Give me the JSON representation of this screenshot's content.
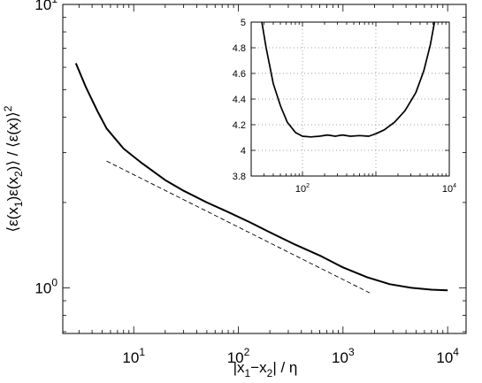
{
  "chart_data": [
    {
      "type": "line",
      "xscale": "log",
      "yscale": "log",
      "xlabel": "|x1−x2| / η",
      "ylabel": "⟨ε(x1)ε(x2)⟩ / ⟨ε(x)⟩²",
      "xlim": [
        2.1,
        15000
      ],
      "ylim": [
        0.69,
        10
      ],
      "xticks": [
        {
          "value": 10,
          "base": "10",
          "exp": "1"
        },
        {
          "value": 100,
          "base": "10",
          "exp": "2"
        },
        {
          "value": 1000,
          "base": "10",
          "exp": "3"
        },
        {
          "value": 10000,
          "base": "10",
          "exp": "4"
        }
      ],
      "yticks": [
        {
          "value": 1,
          "base": "10",
          "exp": "0"
        },
        {
          "value": 10,
          "base": "10",
          "exp": "1"
        }
      ],
      "series": [
        {
          "style": "solid",
          "x": [
            2.8,
            3.5,
            4.5,
            5.5,
            8,
            12,
            20,
            30,
            50,
            80,
            130,
            200,
            350,
            600,
            1000,
            1700,
            2800,
            4500,
            7000,
            10000
          ],
          "y": [
            6.2,
            5.1,
            4.2,
            3.65,
            3.1,
            2.75,
            2.4,
            2.2,
            2.0,
            1.85,
            1.7,
            1.57,
            1.42,
            1.3,
            1.18,
            1.09,
            1.03,
            1.0,
            0.985,
            0.98
          ]
        },
        {
          "style": "dashed",
          "x": [
            5.5,
            1800
          ],
          "y": [
            2.8,
            0.96
          ]
        }
      ]
    },
    {
      "type": "line",
      "xscale": "log",
      "yscale": "linear",
      "xlim": [
        20,
        10000
      ],
      "ylim": [
        3.8,
        5
      ],
      "grid": true,
      "xticks": [
        {
          "value": 100,
          "base": "10",
          "exp": "2"
        },
        {
          "value": 10000,
          "base": "10",
          "exp": "4"
        }
      ],
      "yticks": [
        "3.8",
        "4",
        "4.2",
        "4.4",
        "4.6",
        "4.8",
        "5"
      ],
      "series": [
        {
          "style": "solid",
          "x": [
            28,
            32,
            40,
            50,
            62,
            80,
            100,
            130,
            170,
            220,
            280,
            350,
            450,
            600,
            800,
            1000,
            1300,
            1800,
            2500,
            3500,
            4500,
            5500,
            6300
          ],
          "y": [
            5.0,
            4.8,
            4.52,
            4.35,
            4.22,
            4.14,
            4.11,
            4.105,
            4.11,
            4.12,
            4.11,
            4.12,
            4.11,
            4.115,
            4.11,
            4.13,
            4.16,
            4.22,
            4.31,
            4.45,
            4.62,
            4.82,
            5.0
          ]
        }
      ]
    }
  ]
}
